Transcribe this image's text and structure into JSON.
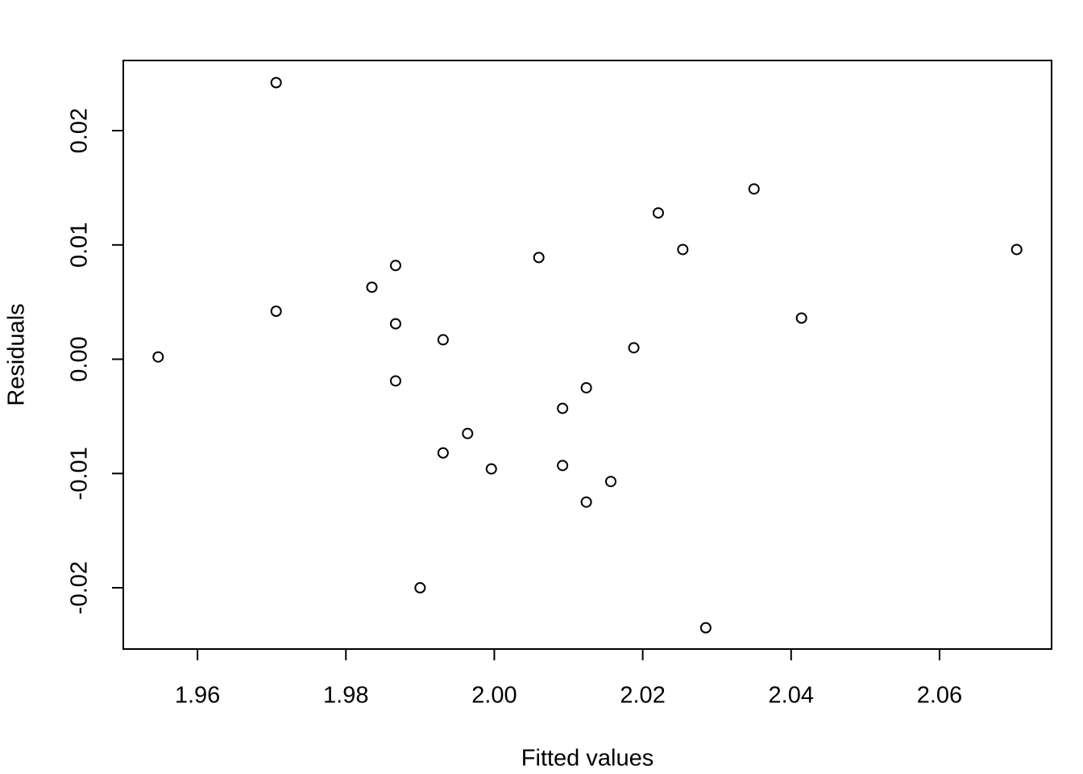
{
  "chart_data": {
    "type": "scatter",
    "x_label": "Fitted values",
    "y_label": "Residuals",
    "x": [
      1.9547,
      1.9706,
      1.9706,
      1.9835,
      1.9867,
      1.9867,
      1.9867,
      1.99,
      1.9931,
      1.9931,
      1.9964,
      1.9996,
      2.006,
      2.0092,
      2.0092,
      2.0124,
      2.0124,
      2.0157,
      2.0188,
      2.0221,
      2.0254,
      2.0285,
      2.035,
      2.0414,
      2.0704
    ],
    "values": [
      0.0002,
      0.0242,
      0.0042,
      0.0063,
      0.0082,
      0.0031,
      -0.0019,
      -0.02,
      0.0017,
      -0.0082,
      -0.0065,
      -0.0096,
      0.0089,
      -0.0043,
      -0.0093,
      -0.0025,
      -0.0125,
      -0.0107,
      0.001,
      0.0128,
      0.0096,
      -0.0235,
      0.0149,
      0.0036,
      0.0096
    ],
    "color": "#000000",
    "xlim": [
      1.95,
      2.0751
    ],
    "ylim": [
      -0.02536,
      0.02614
    ],
    "xticks": [
      1.96,
      1.98,
      {
        "value": 2,
        "label": "2.00"
      },
      2.02,
      2.04,
      2.06
    ],
    "yticks": [
      -0.02,
      -0.01,
      {
        "value": 0,
        "label": "0.00"
      },
      0.01,
      0.02
    ]
  }
}
